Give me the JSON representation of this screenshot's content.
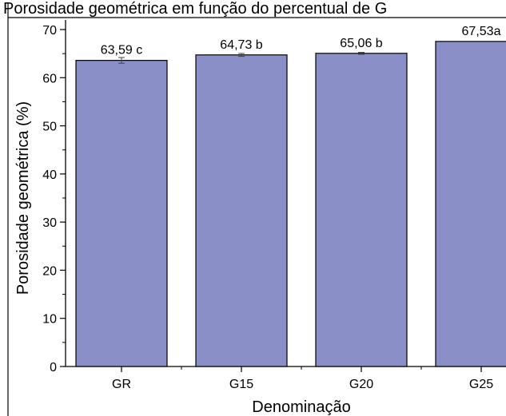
{
  "chart_data": {
    "type": "bar",
    "title": "Porosidade geométrica em função do percentual de G",
    "xlabel": "Denominação",
    "ylabel": "Porosidade geométrica (%)",
    "categories": [
      "GR",
      "G15",
      "G20",
      "G25"
    ],
    "values": [
      63.59,
      64.73,
      65.06,
      67.53
    ],
    "errors": [
      0.6,
      0.3,
      0.2,
      0
    ],
    "data_labels": [
      "63,59 c",
      "64,73 b",
      "65,06 b",
      "67,53a"
    ],
    "ylim": [
      0,
      70
    ],
    "yticks": [
      0,
      10,
      20,
      30,
      40,
      50,
      60,
      70
    ],
    "ytick_labels": [
      "0",
      "10",
      "20",
      "30",
      "40",
      "50",
      "60",
      "70"
    ],
    "bar_color": "#8b8fc8",
    "grid": false,
    "legend": "none"
  }
}
